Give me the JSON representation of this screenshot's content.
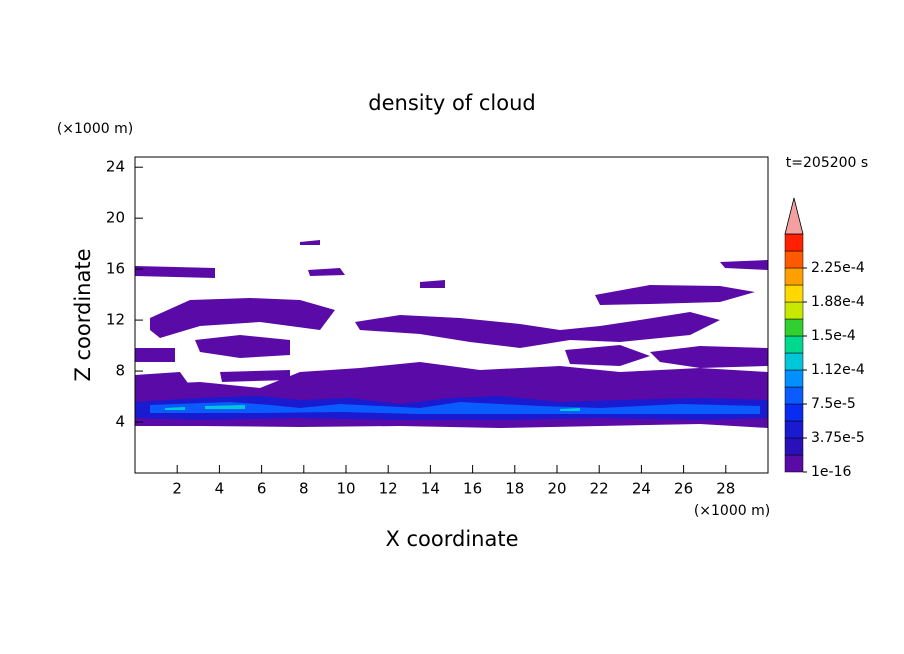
{
  "chart_data": {
    "type": "contour",
    "title": "density of cloud",
    "x_label": "X coordinate",
    "y_label": "Z coordinate",
    "x_unit": "(×1000 m)",
    "y_unit": "(×1000 m)",
    "annotation": "t=205200 s",
    "xlim": [
      0,
      30
    ],
    "ylim": [
      0,
      24.8
    ],
    "xticks": [
      2,
      4,
      6,
      8,
      10,
      12,
      14,
      16,
      18,
      20,
      22,
      24,
      26,
      28
    ],
    "yticks": [
      4,
      8,
      12,
      16,
      20,
      24
    ],
    "colorbar": {
      "colors": [
        "#5a0aa6",
        "#2a10b8",
        "#1a1ad0",
        "#0a2cf0",
        "#0a5cff",
        "#0090ff",
        "#00c8d8",
        "#00d890",
        "#30d030",
        "#c8e800",
        "#ffd800",
        "#ffa000",
        "#ff5a00",
        "#ff2000"
      ],
      "extend_color": "#f4a0a0",
      "levels": [
        {
          "value": 1e-16,
          "label": "1e-16"
        },
        {
          "value": 3.75e-05,
          "label": "3.75e-5"
        },
        {
          "value": 7.5e-05,
          "label": "7.5e-5"
        },
        {
          "value": 0.000112,
          "label": "1.12e-4"
        },
        {
          "value": 0.00015,
          "label": "1.5e-4"
        },
        {
          "value": 0.000188,
          "label": "1.88e-4"
        },
        {
          "value": 0.000225,
          "label": "2.25e-4"
        }
      ]
    }
  }
}
